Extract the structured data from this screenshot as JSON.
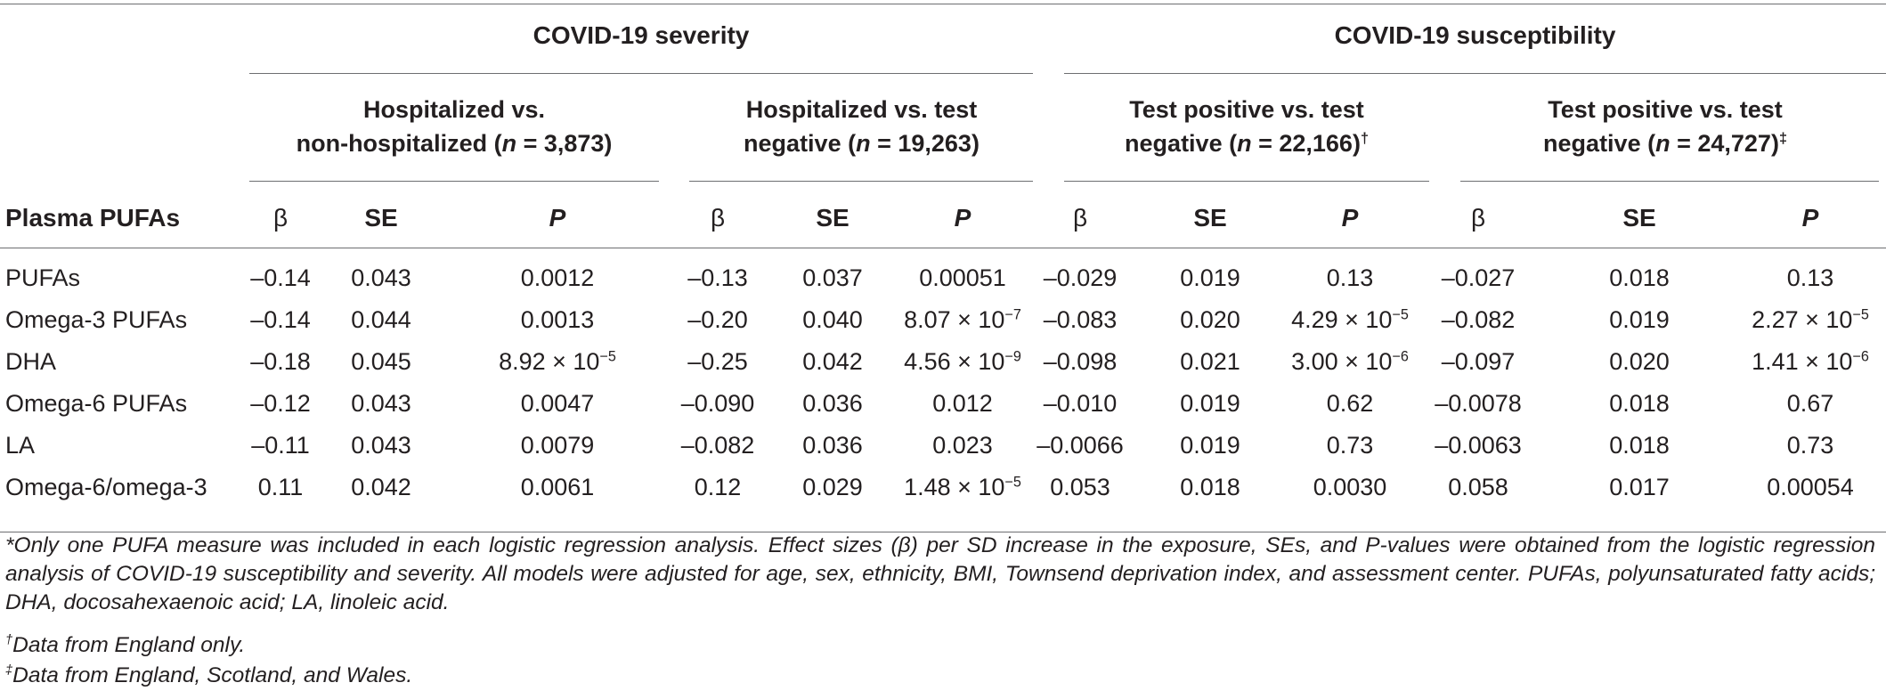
{
  "groups": {
    "severity": "COVID-19 severity",
    "susceptibility": "COVID-19 susceptibility"
  },
  "subgroups": [
    {
      "line1": "Hospitalized vs.",
      "line2_pre": "non-hospitalized (",
      "n_sym": "n",
      "line2_post": " = 3,873)",
      "mark": ""
    },
    {
      "line1": "Hospitalized vs. test",
      "line2_pre": "negative (",
      "n_sym": "n",
      "line2_post": " = 19,263)",
      "mark": ""
    },
    {
      "line1": "Test positive vs. test",
      "line2_pre": "negative (",
      "n_sym": "n",
      "line2_post": " = 22,166)",
      "mark": "†"
    },
    {
      "line1": "Test positive vs. test",
      "line2_pre": "negative (",
      "n_sym": "n",
      "line2_post": " = 24,727)",
      "mark": "‡"
    }
  ],
  "columns": {
    "label": "Plasma PUFAs",
    "beta": "β",
    "se": "SE",
    "p": "P"
  },
  "rows": [
    {
      "label": "PUFAs",
      "cells": [
        {
          "b": "–0.14",
          "se": "0.043",
          "p": "0.0012",
          "exp": ""
        },
        {
          "b": "–0.13",
          "se": "0.037",
          "p": "0.00051",
          "exp": ""
        },
        {
          "b": "–0.029",
          "se": "0.019",
          "p": "0.13",
          "exp": ""
        },
        {
          "b": "–0.027",
          "se": "0.018",
          "p": "0.13",
          "exp": ""
        }
      ]
    },
    {
      "label": "Omega-3 PUFAs",
      "cells": [
        {
          "b": "–0.14",
          "se": "0.044",
          "p": "0.0013",
          "exp": ""
        },
        {
          "b": "–0.20",
          "se": "0.040",
          "p": "8.07 × 10",
          "exp": "−7"
        },
        {
          "b": "–0.083",
          "se": "0.020",
          "p": "4.29 × 10",
          "exp": "−5"
        },
        {
          "b": "–0.082",
          "se": "0.019",
          "p": "2.27 × 10",
          "exp": "−5"
        }
      ]
    },
    {
      "label": "DHA",
      "cells": [
        {
          "b": "–0.18",
          "se": "0.045",
          "p": "8.92 × 10",
          "exp": "−5"
        },
        {
          "b": "–0.25",
          "se": "0.042",
          "p": "4.56 × 10",
          "exp": "−9"
        },
        {
          "b": "–0.098",
          "se": "0.021",
          "p": "3.00 × 10",
          "exp": "−6"
        },
        {
          "b": "–0.097",
          "se": "0.020",
          "p": "1.41 × 10",
          "exp": "−6"
        }
      ]
    },
    {
      "label": "Omega-6 PUFAs",
      "cells": [
        {
          "b": "–0.12",
          "se": "0.043",
          "p": "0.0047",
          "exp": ""
        },
        {
          "b": "–0.090",
          "se": "0.036",
          "p": "0.012",
          "exp": ""
        },
        {
          "b": "–0.010",
          "se": "0.019",
          "p": "0.62",
          "exp": ""
        },
        {
          "b": "–0.0078",
          "se": "0.018",
          "p": "0.67",
          "exp": ""
        }
      ]
    },
    {
      "label": "LA",
      "cells": [
        {
          "b": "–0.11",
          "se": "0.043",
          "p": "0.0079",
          "exp": ""
        },
        {
          "b": "–0.082",
          "se": "0.036",
          "p": "0.023",
          "exp": ""
        },
        {
          "b": "–0.0066",
          "se": "0.019",
          "p": "0.73",
          "exp": ""
        },
        {
          "b": "–0.0063",
          "se": "0.018",
          "p": "0.73",
          "exp": ""
        }
      ]
    },
    {
      "label": "Omega-6/omega-3",
      "cells": [
        {
          "b": "0.11",
          "se": "0.042",
          "p": "0.0061",
          "exp": ""
        },
        {
          "b": "0.12",
          "se": "0.029",
          "p": "1.48 × 10",
          "exp": "−5"
        },
        {
          "b": "0.053",
          "se": "0.018",
          "p": "0.0030",
          "exp": ""
        },
        {
          "b": "0.058",
          "se": "0.017",
          "p": "0.00054",
          "exp": ""
        }
      ]
    }
  ],
  "footnotes": {
    "main": "*Only one PUFA measure was included in each logistic regression analysis. Effect sizes (β) per SD increase in the exposure, SEs, and P-values were obtained from the logistic regression analysis of COVID-19 susceptibility and severity. All models were adjusted for age, sex, ethnicity, BMI, Townsend deprivation index, and assessment center. PUFAs, polyunsaturated fatty acids; DHA, docosahexaenoic acid; LA, linoleic acid.",
    "dagger_mark": "†",
    "dagger_text": "Data from England only.",
    "ddagger_mark": "‡",
    "ddagger_text": "Data from England, Scotland, and Wales."
  }
}
